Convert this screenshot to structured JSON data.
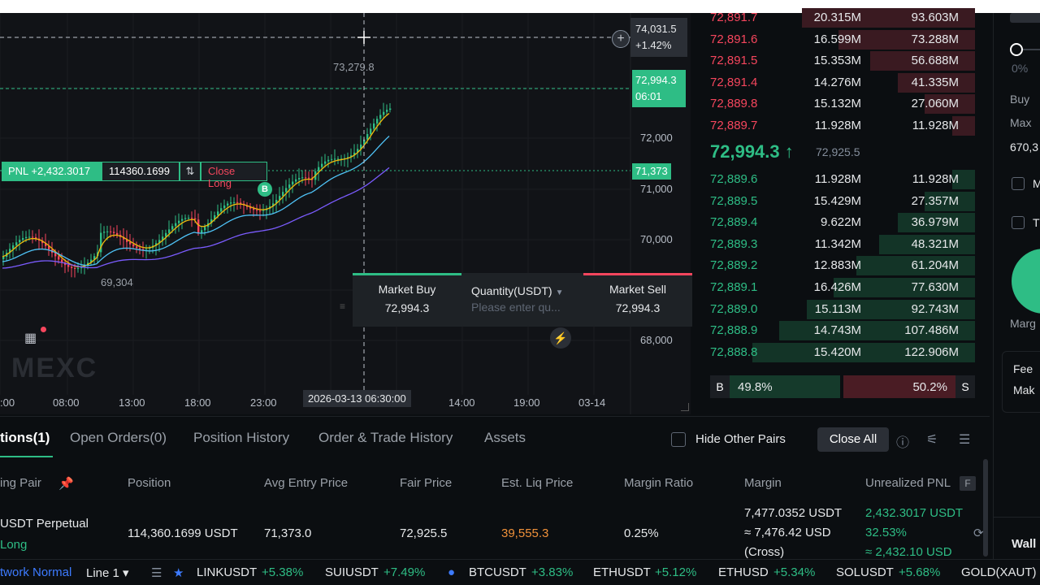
{
  "chart": {
    "price_ticks": [
      "72,000",
      "71,000",
      "70,000",
      "68,000"
    ],
    "time_ticks": [
      ":00",
      "08:00",
      "13:00",
      "18:00",
      "23:00",
      "14:00",
      "19:00",
      "03-14"
    ],
    "high_label": "73,279.8",
    "low_label": "69,304",
    "crosshair_price": "74,031.5",
    "crosshair_pct": "+1.42%",
    "last_price": "72,994.3",
    "countdown": "06:01",
    "entry_price": "71,373",
    "crosshair_time": "2026-03-13 06:30:00",
    "watermark": "MEXC",
    "pnl_label": "PNL +2,432.3017",
    "position_qty": "114360.1699",
    "close_long": "Close Long",
    "buy_marker": "B",
    "colors": {
      "up": "#2ebd85",
      "down": "#f6465d",
      "ma_fast": "#f0b90b",
      "ma_mid": "#4fc3f7",
      "ma_slow": "#7b5cff"
    }
  },
  "quick_trade": {
    "buy_label": "Market Buy",
    "buy_price": "72,994.3",
    "qty_label": "Quantity(USDT)",
    "qty_placeholder": "Please enter qu...",
    "sell_label": "Market Sell",
    "sell_price": "72,994.3"
  },
  "orderbook": {
    "asks": [
      {
        "price": "72,891.7",
        "amount": "20.315M",
        "total": "93.603M",
        "depth": 0.76
      },
      {
        "price": "72,891.6",
        "amount": "16.599M",
        "total": "73.288M",
        "depth": 0.6
      },
      {
        "price": "72,891.5",
        "amount": "15.353M",
        "total": "56.688M",
        "depth": 0.46
      },
      {
        "price": "72,891.4",
        "amount": "14.276M",
        "total": "41.335M",
        "depth": 0.34
      },
      {
        "price": "72,889.8",
        "amount": "15.132M",
        "total": "27.060M",
        "depth": 0.22
      },
      {
        "price": "72,889.7",
        "amount": "11.928M",
        "total": "11.928M",
        "depth": 0.1
      }
    ],
    "mid_price": "72,994.3 ↑",
    "mid_fair": "72,925.5",
    "bids": [
      {
        "price": "72,889.6",
        "amount": "11.928M",
        "total": "11.928M",
        "depth": 0.1
      },
      {
        "price": "72,889.5",
        "amount": "15.429M",
        "total": "27.357M",
        "depth": 0.22
      },
      {
        "price": "72,889.4",
        "amount": "9.622M",
        "total": "36.979M",
        "depth": 0.34
      },
      {
        "price": "72,889.3",
        "amount": "11.342M",
        "total": "48.321M",
        "depth": 0.42
      },
      {
        "price": "72,889.2",
        "amount": "12.883M",
        "total": "61.204M",
        "depth": 0.52
      },
      {
        "price": "72,889.1",
        "amount": "16.426M",
        "total": "77.630M",
        "depth": 0.62
      },
      {
        "price": "72,889.0",
        "amount": "15.113M",
        "total": "92.743M",
        "depth": 0.74
      },
      {
        "price": "72,888.9",
        "amount": "14.743M",
        "total": "107.486M",
        "depth": 0.86
      },
      {
        "price": "72,888.8",
        "amount": "15.420M",
        "total": "122.906M",
        "depth": 0.98
      }
    ],
    "buy_ratio": "49.8%",
    "sell_ratio": "50.2%",
    "b": "B",
    "s": "S"
  },
  "right_panel": {
    "pct": "0%",
    "buy": "Buy",
    "max": "Max",
    "value": "670,3",
    "m": "M",
    "t": "T",
    "marg": "Marg",
    "fee": "Fee",
    "mak": "Mak",
    "wall": "Wall"
  },
  "positions": {
    "tabs": [
      "tions(1)",
      "Open Orders(0)",
      "Position History",
      "Order & Trade History",
      "Assets"
    ],
    "hide_other": "Hide Other Pairs",
    "close_all": "Close All",
    "columns": [
      "ing Pair",
      "Position",
      "Avg Entry Price",
      "Fair Price",
      "Est. Liq Price",
      "Margin Ratio",
      "Margin",
      "Unrealized PNL"
    ],
    "f_badge": "F",
    "row": {
      "pair": "USDT  Perpetual",
      "side": "Long",
      "position": "114,360.1699 USDT",
      "avg_entry": "71,373.0",
      "fair": "72,925.5",
      "liq": "39,555.3",
      "margin_ratio": "0.25%",
      "margin1": "7,477.0352 USDT",
      "margin2": "≈ 7,476.42 USD",
      "margin3": "(Cross)",
      "pnl1": "2,432.3017 USDT",
      "pnl2": "32.53%",
      "pnl3": "≈ 2,432.10 USD"
    }
  },
  "ticker": {
    "network": "twork Normal",
    "line": "Line 1 ▾",
    "items": [
      {
        "sym": "LINKUSDT",
        "chg": "+5.38%"
      },
      {
        "sym": "SUIUSDT",
        "chg": "+7.49%"
      },
      {
        "sym": "BTCUSDT",
        "chg": "+3.83%"
      },
      {
        "sym": "ETHUSDT",
        "chg": "+5.12%"
      },
      {
        "sym": "ETHUSD",
        "chg": "+5.34%"
      },
      {
        "sym": "SOLUSDT",
        "chg": "+5.68%"
      },
      {
        "sym": "GOLD(XAUT)",
        "chg": ""
      }
    ]
  }
}
